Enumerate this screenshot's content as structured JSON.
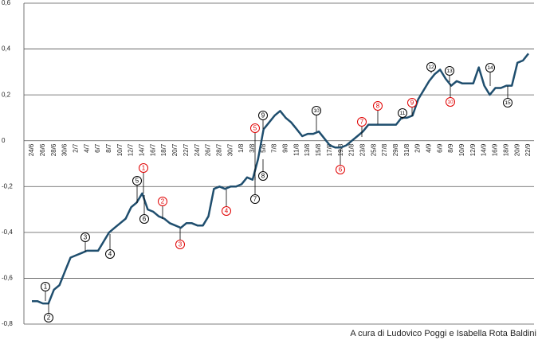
{
  "chart_data": {
    "type": "line",
    "categories": [
      "24/6",
      null,
      "26/6",
      null,
      "28/6",
      null,
      "30/6",
      null,
      "2/7",
      null,
      "4/7",
      null,
      "6/7",
      null,
      "8/7",
      null,
      "10/7",
      null,
      "12/7",
      null,
      "14/7",
      null,
      "16/7",
      null,
      "18/7",
      null,
      "20/7",
      null,
      "22/7",
      null,
      "24/7",
      null,
      "26/7",
      null,
      "28/7",
      null,
      "30/7",
      null,
      "1/8",
      null,
      "3/8",
      null,
      "5/8",
      null,
      "7/8",
      null,
      "9/8",
      null,
      "11/8",
      null,
      "13/8",
      null,
      "15/8",
      null,
      "17/8",
      null,
      "19/8",
      null,
      "21/8",
      null,
      "23/8",
      null,
      "25/8",
      null,
      "27/8",
      null,
      "29/8",
      null,
      "31/8",
      null,
      "2/9",
      null,
      "4/9",
      null,
      "6/9",
      null,
      "8/9",
      null,
      "10/9",
      null,
      "12/9",
      null,
      "14/9",
      null,
      "16/9",
      null,
      "18/9",
      null,
      "20/9",
      null,
      "22/9"
    ],
    "series": [
      {
        "color": "#1f4e6e",
        "values": [
          -0.7,
          -0.7,
          -0.71,
          -0.71,
          -0.65,
          -0.63,
          -0.57,
          -0.51,
          -0.5,
          -0.49,
          -0.48,
          -0.48,
          -0.48,
          -0.44,
          -0.4,
          -0.38,
          -0.36,
          -0.34,
          -0.29,
          -0.27,
          -0.23,
          -0.3,
          -0.31,
          -0.33,
          -0.34,
          -0.36,
          -0.37,
          -0.38,
          -0.36,
          -0.36,
          -0.37,
          -0.37,
          -0.33,
          -0.21,
          -0.2,
          -0.21,
          -0.2,
          -0.2,
          -0.19,
          -0.16,
          -0.17,
          -0.08,
          0.05,
          0.08,
          0.11,
          0.13,
          0.1,
          0.08,
          0.05,
          0.02,
          0.03,
          0.03,
          0.04,
          0.01,
          -0.02,
          -0.03,
          -0.03,
          -0.02,
          0.0,
          0.02,
          0.04,
          0.07,
          0.07,
          0.07,
          0.07,
          0.07,
          0.07,
          0.1,
          0.1,
          0.11,
          0.18,
          0.22,
          0.26,
          0.29,
          0.31,
          0.27,
          0.24,
          0.26,
          0.25,
          0.25,
          0.25,
          0.32,
          0.24,
          0.2,
          0.23,
          0.23,
          0.24,
          0.24,
          0.34,
          0.35,
          0.38
        ]
      }
    ],
    "ylim": [
      -0.8,
      0.6
    ],
    "yticks": [
      {
        "value": -0.8,
        "label": "-0,8"
      },
      {
        "value": -0.6,
        "label": "-0,6"
      },
      {
        "value": -0.4,
        "label": "-0,4"
      },
      {
        "value": -0.2,
        "label": "-0,2"
      },
      0,
      {
        "value": 0.2,
        "label": "0,2"
      },
      {
        "value": 0.4,
        "label": "0,4"
      },
      {
        "value": 0.6,
        "label": "0,6"
      }
    ],
    "grid": true,
    "annotations": [
      {
        "text": "1",
        "color": "#000000"
      },
      {
        "text": "2",
        "color": "#000000"
      },
      {
        "text": "3",
        "color": "#000000"
      },
      {
        "text": "4",
        "color": "#000000"
      },
      {
        "text": "5",
        "color": "#000000"
      },
      {
        "text": "6",
        "color": "#000000"
      },
      {
        "text": "7",
        "color": "#000000"
      },
      {
        "text": "8",
        "color": "#000000"
      },
      {
        "text": "9",
        "color": "#000000"
      },
      {
        "text": "10",
        "color": "#000000"
      },
      {
        "text": "11",
        "color": "#000000"
      },
      {
        "text": "12",
        "color": "#000000"
      },
      {
        "text": "13",
        "color": "#000000"
      },
      {
        "text": "14",
        "color": "#000000"
      },
      {
        "text": "15",
        "color": "#000000"
      },
      {
        "text": "1",
        "color": "#e00000"
      },
      {
        "text": "2",
        "color": "#e00000"
      },
      {
        "text": "3",
        "color": "#e00000"
      },
      {
        "text": "4",
        "color": "#e00000"
      },
      {
        "text": "5",
        "color": "#e00000"
      },
      {
        "text": "6",
        "color": "#e00000"
      },
      {
        "text": "7",
        "color": "#e00000"
      },
      {
        "text": "8",
        "color": "#e00000"
      },
      {
        "text": "9",
        "color": "#e00000"
      },
      {
        "text": "10",
        "color": "#e00000"
      }
    ],
    "source": "A cura di Ludovico Poggi e Isabella Rota Baldini"
  }
}
